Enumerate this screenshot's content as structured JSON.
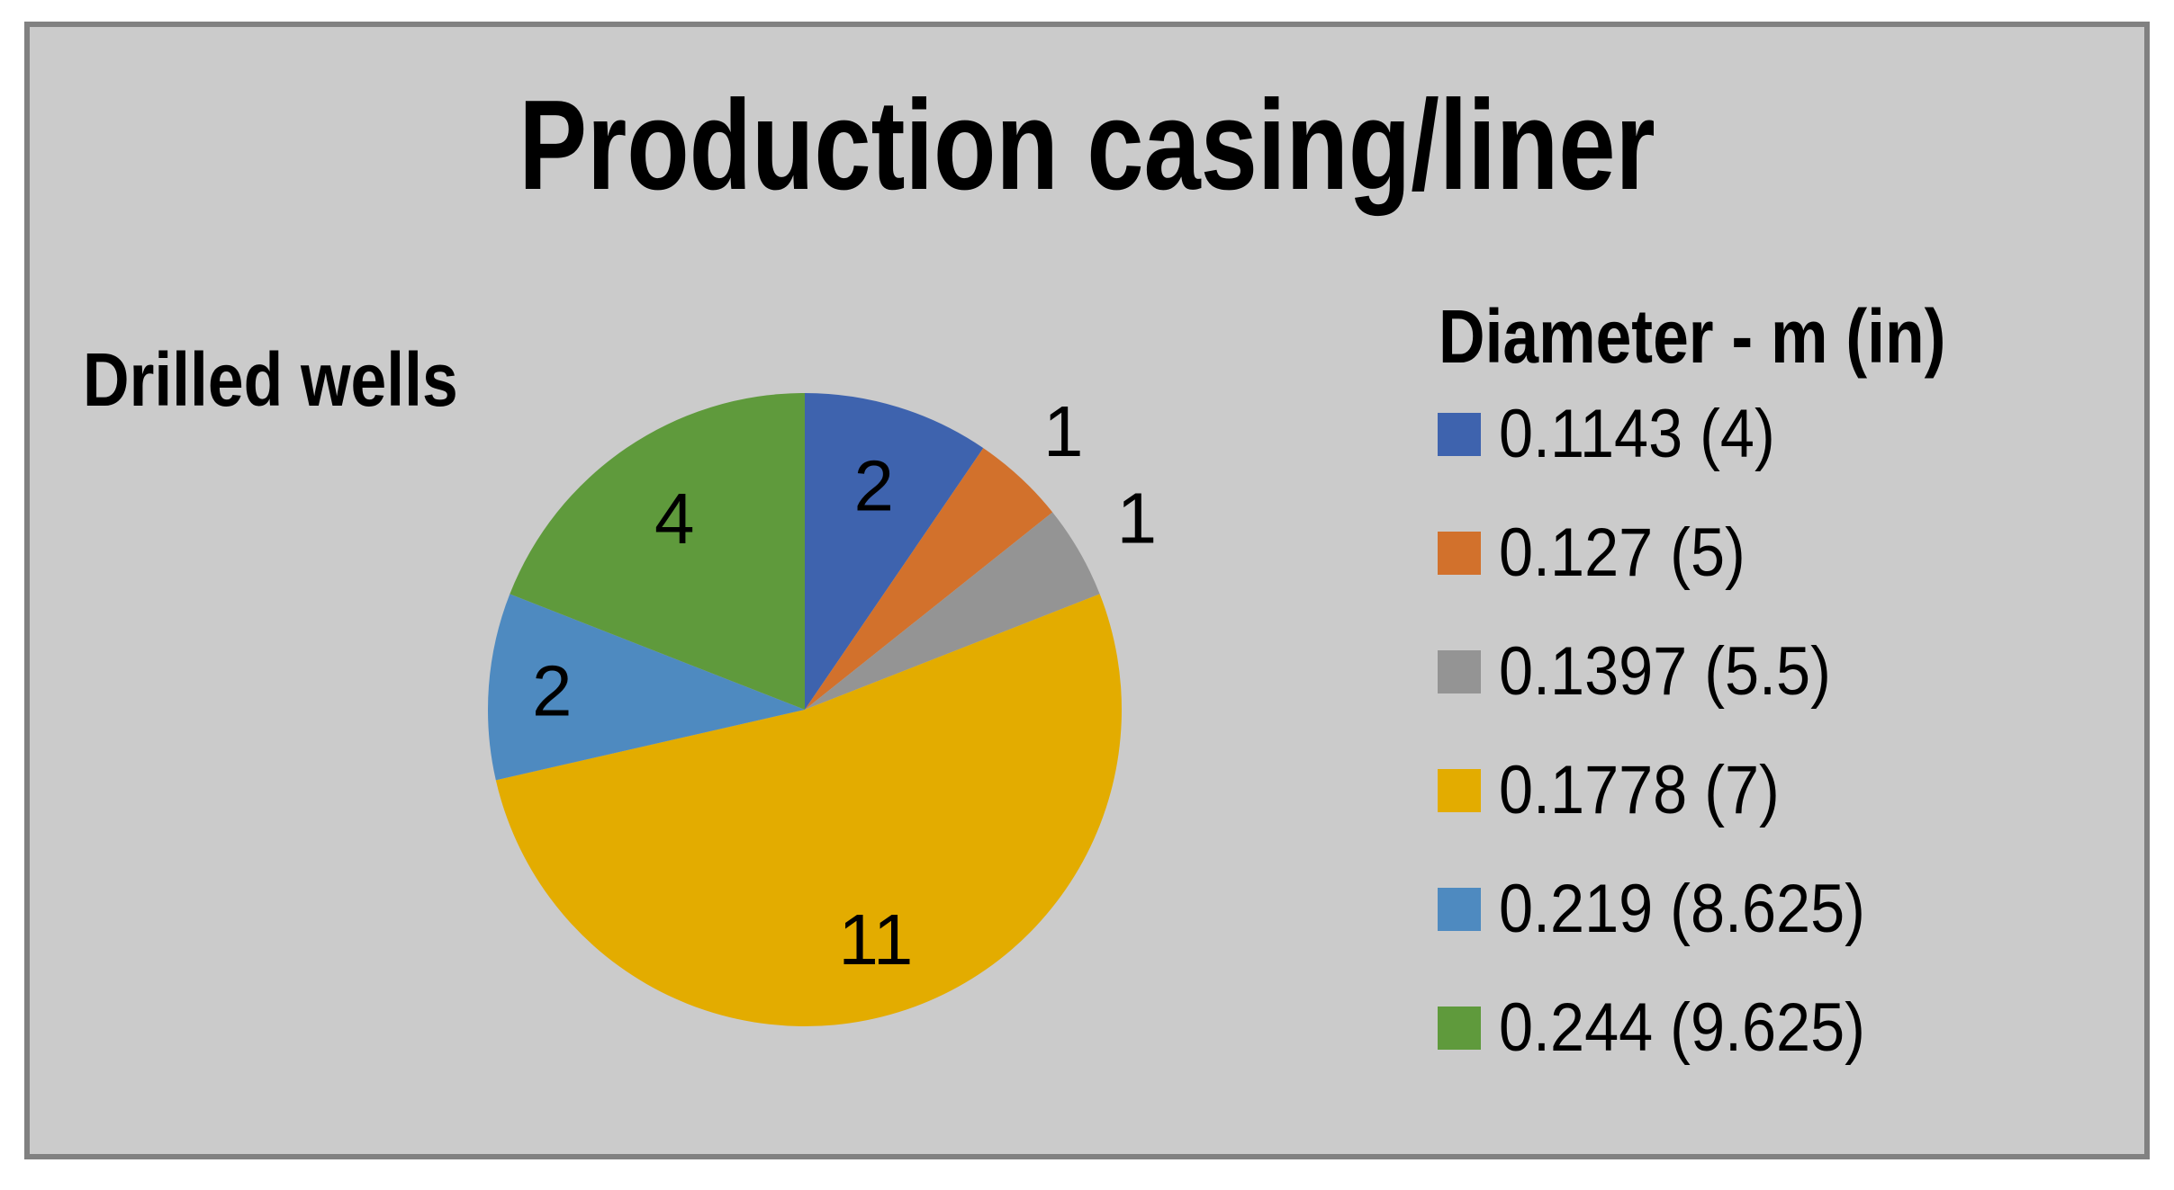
{
  "frame": {
    "background": "#cbcbcb",
    "border_color": "#818181"
  },
  "title": "Production casing/liner",
  "side_label": "Drilled wells",
  "legend": {
    "title": "Diameter - m (in)",
    "position": "right"
  },
  "chart_data": {
    "type": "pie",
    "title": "Production casing/liner",
    "series_label": "Drilled wells",
    "legend_title": "Diameter - m (in)",
    "start_angle_deg": 0,
    "direction": "clockwise",
    "total": 21,
    "slices": [
      {
        "label": "0.1143 (4)",
        "value": 2,
        "color": "#3e63ae",
        "data_label": "2",
        "label_pos": "inside",
        "label_r": 0.74
      },
      {
        "label": "0.127 (5)",
        "value": 1,
        "color": "#d2712c",
        "data_label": "1",
        "label_pos": "outside",
        "label_r": 1.2
      },
      {
        "label": "0.1397 (5.5)",
        "value": 1,
        "color": "#949494",
        "data_label": "1",
        "label_pos": "outside",
        "label_r": 1.21
      },
      {
        "label": "0.1778 (7)",
        "value": 11,
        "color": "#e3ac00",
        "data_label": "11",
        "label_pos": "inside",
        "label_r": 0.76
      },
      {
        "label": "0.219 (8.625)",
        "value": 2,
        "color": "#4e8ac0",
        "data_label": "2",
        "label_pos": "inside",
        "label_r": 0.8
      },
      {
        "label": "0.244 (9.625)",
        "value": 4,
        "color": "#5f9a3c",
        "data_label": "4",
        "label_pos": "inside",
        "label_r": 0.73
      }
    ]
  }
}
